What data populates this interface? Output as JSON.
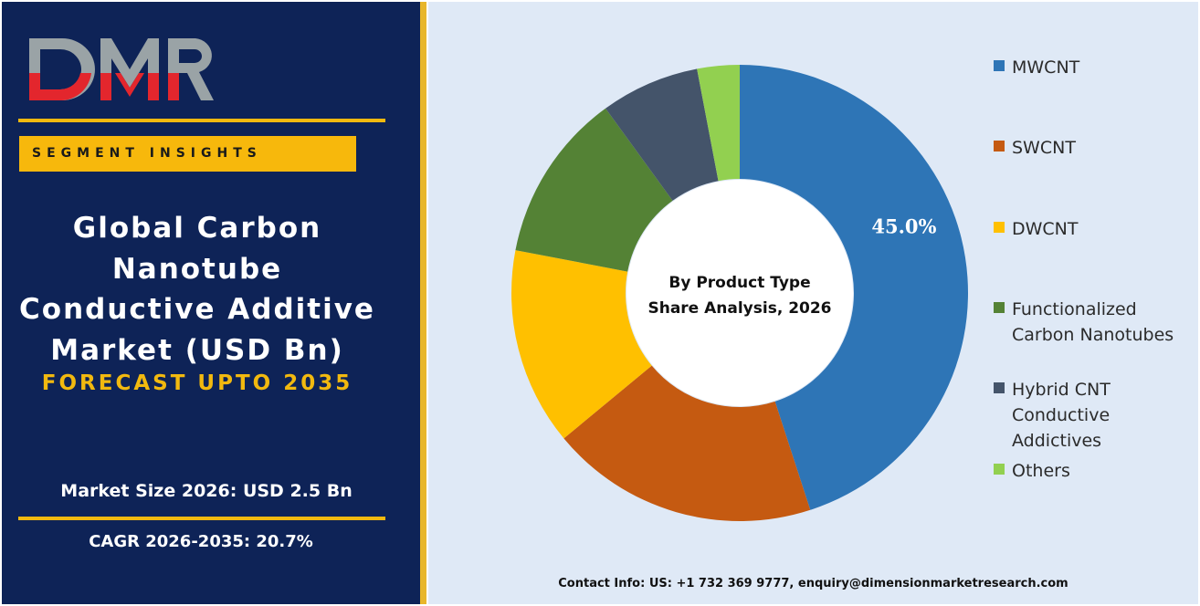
{
  "brand": {
    "logo_text": "DMR",
    "logo_colors": {
      "primary": "#e3262d",
      "secondary": "#9aa3a6"
    }
  },
  "panel": {
    "segment_label": "SEGMENT INSIGHTS",
    "title": "Global Carbon Nanotube Conductive Additive Market (USD Bn)",
    "forecast": "FORECAST UPTO 2035",
    "market_size": "Market Size 2026: USD 2.5 Bn",
    "cagr": "CAGR 2026-2035: 20.7%"
  },
  "chart_data": {
    "type": "pie",
    "center_label": "By Product Type Share Analysis, 2026",
    "categories": [
      "MWCNT",
      "SWCNT",
      "DWCNT",
      "Functionalized Carbon Nanotubes",
      "Hybrid CNT Conductive Addictives",
      "Others"
    ],
    "values": [
      45.0,
      19.0,
      14.0,
      12.0,
      7.0,
      3.0
    ],
    "colors": [
      "#2e75b6",
      "#c55a11",
      "#ffc000",
      "#548235",
      "#44546a",
      "#92d050"
    ],
    "data_labels": [
      "45.0%",
      "",
      "",
      "",
      "",
      ""
    ],
    "legend_position": "right"
  },
  "contact": "Contact Info: US: +1 732 369 9777, enquiry@dimensionmarketresearch.com"
}
